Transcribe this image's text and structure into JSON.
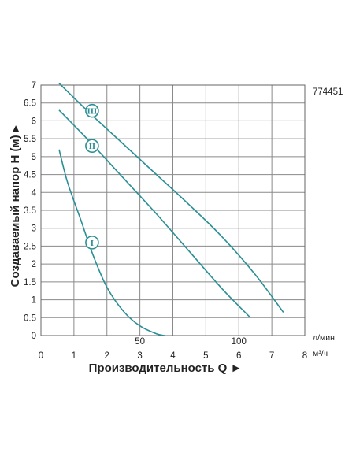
{
  "chart_data": {
    "type": "line",
    "code": "774451",
    "ylabel": "Создаваемый напор H (м) ▸",
    "xlabel": "Производительность Q ►",
    "unit_lpm": "л/мин",
    "unit_m3h": "м³/ч",
    "xlim": [
      0,
      8
    ],
    "ylim": [
      0,
      7
    ],
    "x_ticks": [
      "0",
      "1",
      "2",
      "3",
      "4",
      "5",
      "6",
      "7",
      "8"
    ],
    "y_ticks": [
      "0",
      "0.5",
      "1",
      "1.5",
      "2",
      "2.5",
      "3",
      "3.5",
      "4",
      "4.5",
      "5",
      "5.5",
      "6",
      "6.5",
      "7"
    ],
    "lpm_ticks": [
      {
        "label": "50",
        "value": 50
      },
      {
        "label": "100",
        "value": 100
      }
    ],
    "grid": true,
    "line_color": "#2a8f95",
    "series": [
      {
        "name": "I",
        "x": [
          0.55,
          0.8,
          1.2,
          1.6,
          2.0,
          2.5,
          3.0,
          3.5,
          3.75
        ],
        "y": [
          5.2,
          4.3,
          3.25,
          2.2,
          1.35,
          0.68,
          0.27,
          0.05,
          0.0
        ]
      },
      {
        "name": "II",
        "x": [
          0.55,
          1.5,
          2.5,
          3.5,
          4.5,
          5.5,
          6.35
        ],
        "y": [
          6.3,
          5.4,
          4.4,
          3.4,
          2.35,
          1.3,
          0.5
        ]
      },
      {
        "name": "III",
        "x": [
          0.55,
          1.5,
          2.5,
          3.5,
          4.5,
          5.5,
          6.5,
          7.35
        ],
        "y": [
          7.05,
          6.2,
          5.35,
          4.5,
          3.65,
          2.75,
          1.7,
          0.65
        ]
      }
    ],
    "markers": [
      {
        "label": "I",
        "x": 1.55,
        "y": 2.6
      },
      {
        "label": "II",
        "x": 1.55,
        "y": 5.3
      },
      {
        "label": "III",
        "x": 1.55,
        "y": 6.28
      }
    ]
  }
}
